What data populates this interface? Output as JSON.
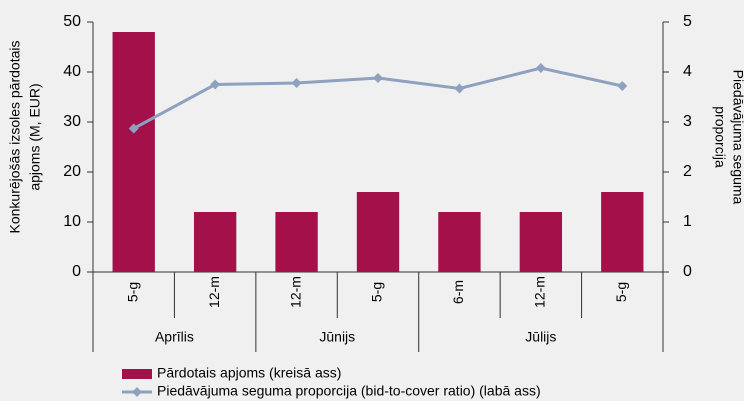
{
  "chart_data": {
    "type": "bar_line",
    "category_groups": [
      {
        "name": "Aprīlis",
        "categories": [
          "5-g",
          "12-m"
        ]
      },
      {
        "name": "Jūnijs",
        "categories": [
          "12-m",
          "5-g"
        ]
      },
      {
        "name": "Jūlijs",
        "categories": [
          "6-m",
          "12-m",
          "5-g"
        ]
      }
    ],
    "ylabel": [
      "Konkurējošās izsoles pārdotais",
      "apjoms (M, EUR)"
    ],
    "y2label": [
      "Piedāvājuma seguma",
      "proporcija"
    ],
    "ylim": [
      0,
      50
    ],
    "yticks": [
      0,
      10,
      20,
      30,
      40,
      50
    ],
    "y2lim": [
      0,
      5
    ],
    "y2ticks": [
      0,
      1,
      2,
      3,
      4,
      5
    ],
    "series": [
      {
        "name": "Pārdotais apjoms (kreisā ass)",
        "type": "bar",
        "color": "#a3104a",
        "values": [
          48,
          12,
          12,
          16,
          12,
          12,
          16
        ]
      },
      {
        "name": "Piedāvājuma seguma proporcija (bid-to-cover ratio) (labā ass)",
        "type": "line",
        "axis": "y2",
        "color": "#8ea2bf",
        "values": [
          2.87,
          3.75,
          3.78,
          3.88,
          3.67,
          4.08,
          3.72
        ]
      }
    ]
  }
}
